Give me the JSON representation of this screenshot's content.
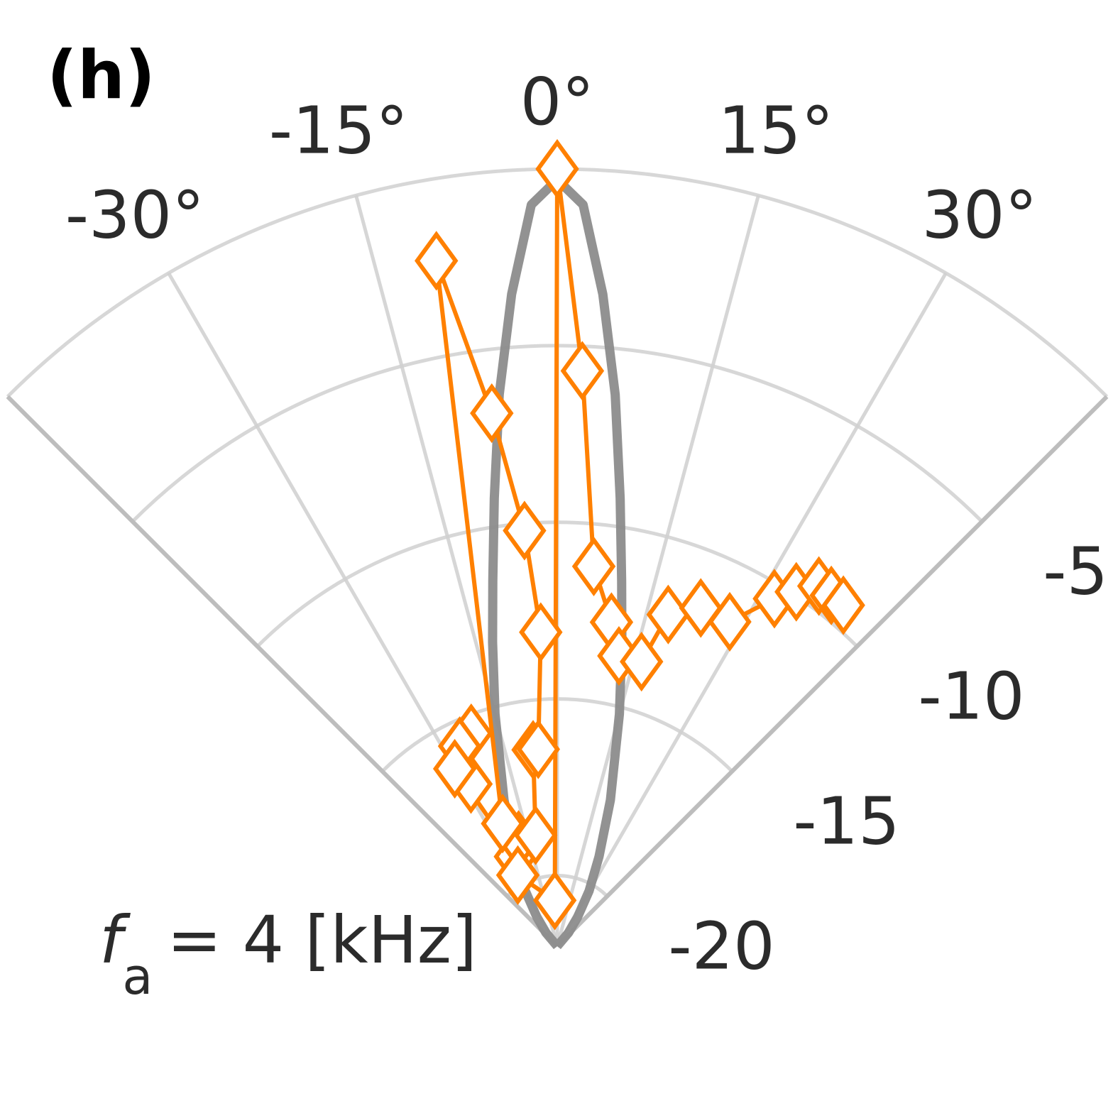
{
  "panel_label": "(h)",
  "annotation": {
    "symbol": "f",
    "subscript": "a",
    "text": "= 4 [kHz]"
  },
  "chart_data": {
    "type": "polar",
    "angle_unit": "deg",
    "angle_range": [
      -45,
      45
    ],
    "angle_ticks": [
      -30,
      -15,
      0,
      15,
      30
    ],
    "angle_tick_labels": [
      "-30°",
      "-15°",
      "0°",
      "15°",
      "30°"
    ],
    "radial_range": [
      -22,
      0
    ],
    "radial_ticks": [
      -5,
      -10,
      -15,
      -20
    ],
    "radial_tick_labels": [
      "-5",
      "-10",
      "-15",
      "-20"
    ],
    "grid": true,
    "series": [
      {
        "style": "solid gray line",
        "color": "#8c8c8c",
        "angle": [
          -45,
          -40,
          -35,
          -30,
          -25,
          -20,
          -15,
          -12,
          -10,
          -8,
          -6,
          -4,
          -2,
          0,
          2,
          4,
          6,
          8,
          10,
          12,
          15,
          20,
          25,
          30,
          35,
          40,
          45
        ],
        "value": [
          -22,
          -21.5,
          -21,
          -20.2,
          -19.2,
          -17.6,
          -15.2,
          -13.2,
          -11.5,
          -9.2,
          -6.3,
          -3.5,
          -1.0,
          -0.3,
          -1.0,
          -3.5,
          -6.3,
          -9.2,
          -11.5,
          -13.2,
          -15.2,
          -17.6,
          -19.2,
          -20.2,
          -21,
          -21.5,
          -22
        ]
      },
      {
        "style": "orange line with diamond markers",
        "color": "#ff8000",
        "angle": [
          -22,
          -26,
          -28,
          -30,
          -25,
          -20,
          -11,
          -7,
          -5.5,
          -3,
          -4.5,
          -7,
          -10,
          -24,
          -29,
          -3,
          0,
          2.5,
          5.5,
          9.5,
          12,
          16.5,
          18.5,
          23,
          28,
          32,
          34,
          36,
          38,
          40
        ],
        "value": [
          -15.5,
          -15.7,
          -16.8,
          -16.2,
          -19.2,
          -18.8,
          -18.8,
          -16.4,
          -16.4,
          -13.1,
          -10.2,
          -6.8,
          -2.3,
          -18.2,
          -19.7,
          -20.7,
          0,
          -5.7,
          -11.2,
          -12.7,
          -13.6,
          -13.6,
          -12.1,
          -11.6,
          -11.6,
          -10.4,
          -9.9,
          -9.4,
          -9.4,
          -9.4
        ]
      }
    ]
  }
}
